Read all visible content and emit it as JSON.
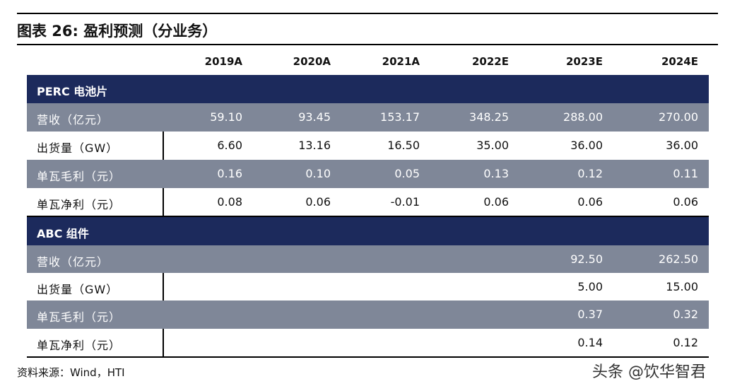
{
  "title": "图表 26: 盈利预测（分业务）",
  "columns": [
    "2019A",
    "2020A",
    "2021A",
    "2022E",
    "2023E",
    "2024E"
  ],
  "sections": [
    {
      "name": "PERC 电池片",
      "rows": [
        {
          "label": "营收（亿元）",
          "values": [
            "59.10",
            "93.45",
            "153.17",
            "348.25",
            "288.00",
            "270.00"
          ]
        },
        {
          "label": "出货量（GW）",
          "values": [
            "6.60",
            "13.16",
            "16.50",
            "35.00",
            "36.00",
            "36.00"
          ]
        },
        {
          "label": "单瓦毛利（元）",
          "values": [
            "0.16",
            "0.10",
            "0.05",
            "0.13",
            "0.12",
            "0.11"
          ]
        },
        {
          "label": "单瓦净利（元）",
          "values": [
            "0.08",
            "0.06",
            "-0.01",
            "0.06",
            "0.06",
            "0.06"
          ]
        }
      ]
    },
    {
      "name": "ABC 组件",
      "rows": [
        {
          "label": "营收（亿元）",
          "values": [
            "",
            "",
            "",
            "",
            "92.50",
            "262.50"
          ]
        },
        {
          "label": "出货量（GW）",
          "values": [
            "",
            "",
            "",
            "",
            "5.00",
            "15.00"
          ]
        },
        {
          "label": "单瓦毛利（元）",
          "values": [
            "",
            "",
            "",
            "",
            "0.37",
            "0.32"
          ]
        },
        {
          "label": "单瓦净利（元）",
          "values": [
            "",
            "",
            "",
            "",
            "0.14",
            "0.12"
          ]
        }
      ]
    }
  ],
  "source": "资料来源：Wind，HTI",
  "watermark": "头条 @饮华智君"
}
